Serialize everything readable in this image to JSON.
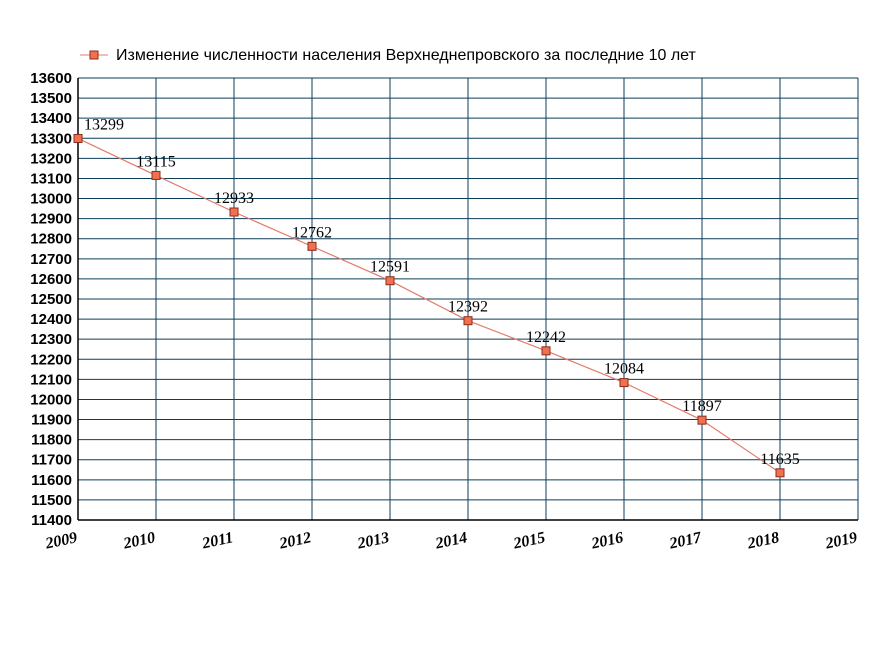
{
  "chart_data": {
    "type": "line",
    "title": "",
    "xlabel": "",
    "ylabel": "",
    "x": [
      2009,
      2010,
      2011,
      2012,
      2013,
      2014,
      2015,
      2016,
      2017,
      2018
    ],
    "x_ticks": [
      "2009",
      "2010",
      "2011",
      "2012",
      "2013",
      "2014",
      "2015",
      "2016",
      "2017",
      "2018",
      "2019"
    ],
    "xlim": [
      2009,
      2019
    ],
    "ylim": [
      11400,
      13600
    ],
    "y_ticks": [
      "11400",
      "11500",
      "11600",
      "11700",
      "11800",
      "11900",
      "12000",
      "12100",
      "12200",
      "12300",
      "12400",
      "12500",
      "12600",
      "12700",
      "12800",
      "12900",
      "13000",
      "13100",
      "13200",
      "13300",
      "13400",
      "13500",
      "13600"
    ],
    "grid": true,
    "legend_position": "top",
    "series": [
      {
        "name": "Изменение численности населения Верхнеднепровского за последние 10 лет",
        "values": [
          13299,
          13115,
          12933,
          12762,
          12591,
          12392,
          12242,
          12084,
          11897,
          11635
        ],
        "labels": [
          "13299",
          "13115",
          "12933",
          "12762",
          "12591",
          "12392",
          "12242",
          "12084",
          "11897",
          "11635"
        ]
      }
    ],
    "colors": {
      "line": "#e37b6b",
      "marker_fill": "#f0704f",
      "marker_stroke": "#8b2c1a",
      "grid": "#0c3e5a",
      "axis": "#000000"
    }
  }
}
